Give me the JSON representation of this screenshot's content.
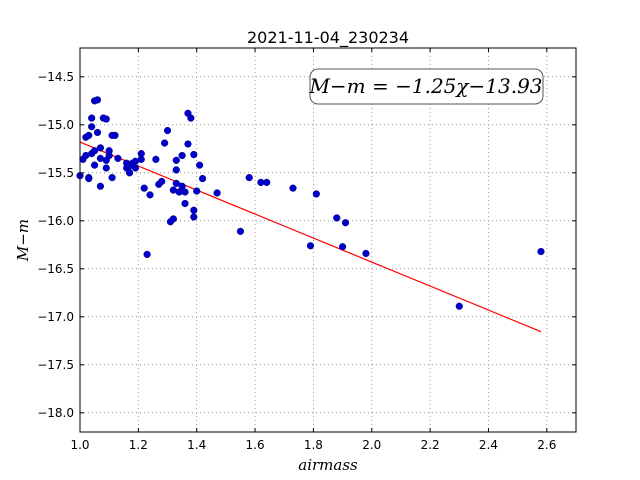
{
  "chart_data": {
    "type": "scatter",
    "title": "2021-11-04_230234",
    "xlabel": "airmass",
    "ylabel": "M−m",
    "xlim": [
      1.0,
      2.7
    ],
    "ylim": [
      -18.2,
      -14.2
    ],
    "x_ticks": [
      1.0,
      1.2,
      1.4,
      1.6,
      1.8,
      2.0,
      2.2,
      2.4,
      2.6
    ],
    "x_tick_labels": [
      "1.0",
      "1.2",
      "1.4",
      "1.6",
      "1.8",
      "2.0",
      "2.2",
      "2.4",
      "2.6"
    ],
    "y_ticks": [
      -18.0,
      -17.5,
      -17.0,
      -16.5,
      -16.0,
      -15.5,
      -15.0,
      -14.5
    ],
    "y_tick_labels": [
      "−18.0",
      "−17.5",
      "−17.0",
      "−16.5",
      "−16.0",
      "−15.5",
      "−15.0",
      "−14.5"
    ],
    "grid": true,
    "annotation": "M−m = −1.25χ−13.93",
    "annotation_placement": "top-right",
    "fit_line": {
      "slope": -1.25,
      "intercept": -13.93,
      "x_range": [
        1.0,
        2.58
      ],
      "color": "#ff0000"
    },
    "point_color": "#0000cc",
    "points": [
      [
        1.0,
        -15.53
      ],
      [
        1.01,
        -15.36
      ],
      [
        1.02,
        -15.32
      ],
      [
        1.03,
        -15.55
      ],
      [
        1.03,
        -15.56
      ],
      [
        1.02,
        -15.13
      ],
      [
        1.03,
        -15.11
      ],
      [
        1.04,
        -14.93
      ],
      [
        1.04,
        -15.02
      ],
      [
        1.04,
        -15.3
      ],
      [
        1.05,
        -15.27
      ],
      [
        1.05,
        -15.42
      ],
      [
        1.05,
        -14.75
      ],
      [
        1.06,
        -14.74
      ],
      [
        1.06,
        -15.08
      ],
      [
        1.07,
        -15.24
      ],
      [
        1.07,
        -15.35
      ],
      [
        1.07,
        -15.64
      ],
      [
        1.08,
        -14.93
      ],
      [
        1.09,
        -14.94
      ],
      [
        1.09,
        -15.37
      ],
      [
        1.09,
        -15.45
      ],
      [
        1.1,
        -15.32
      ],
      [
        1.1,
        -15.27
      ],
      [
        1.11,
        -15.11
      ],
      [
        1.11,
        -15.55
      ],
      [
        1.12,
        -15.11
      ],
      [
        1.13,
        -15.35
      ],
      [
        1.16,
        -15.4
      ],
      [
        1.16,
        -15.45
      ],
      [
        1.17,
        -15.5
      ],
      [
        1.17,
        -15.43
      ],
      [
        1.18,
        -15.4
      ],
      [
        1.19,
        -15.38
      ],
      [
        1.19,
        -15.45
      ],
      [
        1.21,
        -15.3
      ],
      [
        1.21,
        -15.36
      ],
      [
        1.22,
        -15.66
      ],
      [
        1.23,
        -16.35
      ],
      [
        1.24,
        -15.73
      ],
      [
        1.26,
        -15.36
      ],
      [
        1.27,
        -15.62
      ],
      [
        1.28,
        -15.59
      ],
      [
        1.29,
        -15.19
      ],
      [
        1.3,
        -15.06
      ],
      [
        1.31,
        -16.01
      ],
      [
        1.32,
        -15.98
      ],
      [
        1.32,
        -15.68
      ],
      [
        1.33,
        -15.37
      ],
      [
        1.33,
        -15.47
      ],
      [
        1.33,
        -15.61
      ],
      [
        1.34,
        -15.7
      ],
      [
        1.35,
        -15.32
      ],
      [
        1.35,
        -15.64
      ],
      [
        1.36,
        -15.7
      ],
      [
        1.36,
        -15.82
      ],
      [
        1.37,
        -15.2
      ],
      [
        1.37,
        -14.88
      ],
      [
        1.38,
        -14.93
      ],
      [
        1.39,
        -15.31
      ],
      [
        1.39,
        -15.89
      ],
      [
        1.39,
        -15.96
      ],
      [
        1.4,
        -15.69
      ],
      [
        1.41,
        -15.42
      ],
      [
        1.42,
        -15.56
      ],
      [
        1.47,
        -15.71
      ],
      [
        1.55,
        -16.11
      ],
      [
        1.58,
        -15.55
      ],
      [
        1.62,
        -15.6
      ],
      [
        1.64,
        -15.6
      ],
      [
        1.73,
        -15.66
      ],
      [
        1.79,
        -16.26
      ],
      [
        1.81,
        -15.72
      ],
      [
        1.88,
        -15.97
      ],
      [
        1.9,
        -16.27
      ],
      [
        1.91,
        -16.02
      ],
      [
        1.98,
        -16.34
      ],
      [
        2.3,
        -16.89
      ],
      [
        2.58,
        -16.32
      ]
    ]
  }
}
